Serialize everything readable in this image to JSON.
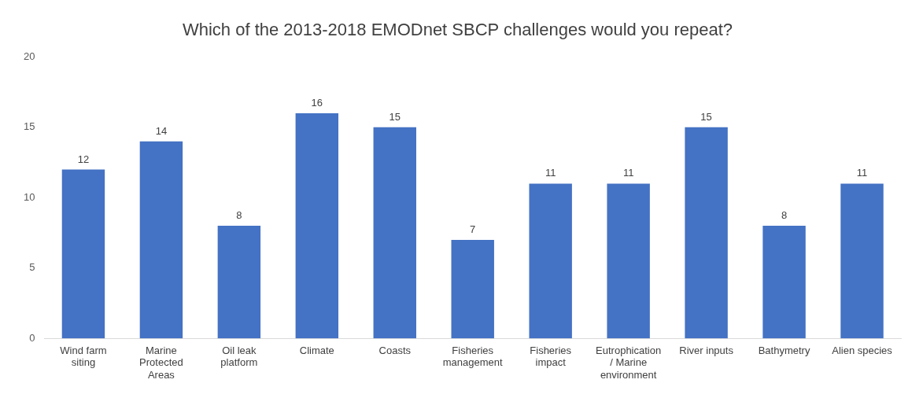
{
  "chart_data": {
    "type": "bar",
    "title": "Which of the 2013-2018 EMODnet SBCP challenges would you repeat?",
    "categories": [
      "Wind farm siting",
      "Marine Protected Areas",
      "Oil leak platform",
      "Climate",
      "Coasts",
      "Fisheries management",
      "Fisheries impact",
      "Eutrophication / Marine environment",
      "River inputs",
      "Bathymetry",
      "Alien species"
    ],
    "values": [
      12,
      14,
      8,
      16,
      15,
      7,
      11,
      11,
      15,
      8,
      11
    ],
    "color": "#4472c4",
    "ylim": [
      0,
      20
    ],
    "yticks": [
      0,
      5,
      10,
      15,
      20
    ],
    "grid": false,
    "legend": false,
    "data_labels": true
  }
}
